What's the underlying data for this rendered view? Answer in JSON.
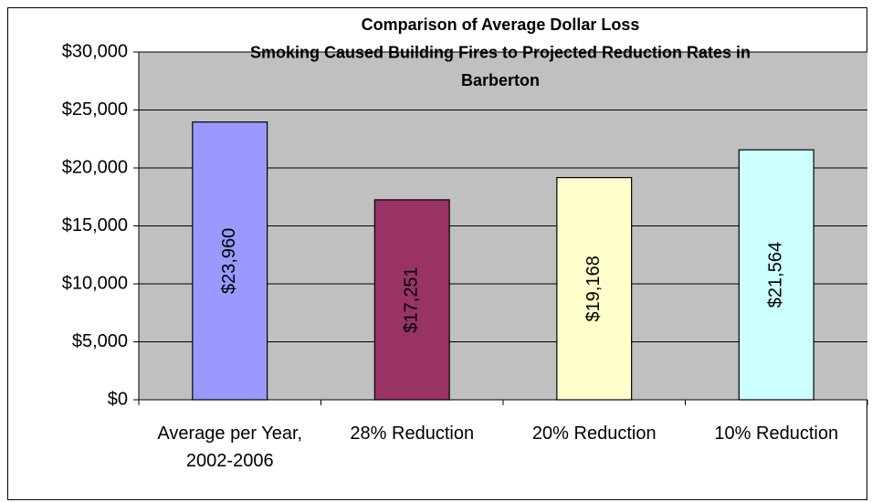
{
  "chart_data": {
    "type": "bar",
    "title": [
      "Comparison of Average Dollar Loss",
      "Smoking Caused Building Fires to Projected Reduction Rates in",
      "Barberton"
    ],
    "categories": [
      "Average per Year, 2002-2006",
      "28% Reduction",
      "20% Reduction",
      "10% Reduction"
    ],
    "values": [
      23960,
      17251,
      19168,
      21564
    ],
    "value_labels": [
      "$23,960",
      "$17,251",
      "$19,168",
      "$21,564"
    ],
    "colors": [
      "#9999ff",
      "#993366",
      "#ffffcc",
      "#ccffff"
    ],
    "ylim": [
      0,
      30000
    ],
    "yticks": [
      {
        "value": 0,
        "label": "$0"
      },
      {
        "value": 5000,
        "label": "$5,000"
      },
      {
        "value": 10000,
        "label": "$10,000"
      },
      {
        "value": 15000,
        "label": "$15,000"
      },
      {
        "value": 20000,
        "label": "$20,000"
      },
      {
        "value": 25000,
        "label": "$25,000"
      },
      {
        "value": 30000,
        "label": "$30,000"
      }
    ],
    "grid": true
  }
}
